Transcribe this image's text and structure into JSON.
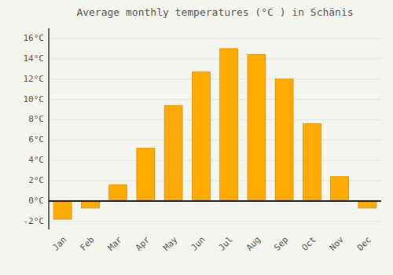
{
  "chart_data": {
    "type": "bar",
    "title": "Average monthly temperatures (°C ) in Schänis",
    "categories": [
      "Jan",
      "Feb",
      "Mar",
      "Apr",
      "May",
      "Jun",
      "Jul",
      "Aug",
      "Sep",
      "Oct",
      "Nov",
      "Dec"
    ],
    "values": [
      -1.8,
      -0.7,
      1.6,
      5.2,
      9.4,
      12.7,
      15.0,
      14.4,
      12.0,
      7.6,
      2.4,
      -0.7
    ],
    "color": "#FFAA00",
    "ylim": [
      -2.8,
      17.0
    ],
    "yticks": [
      {
        "value": -2,
        "label": "-2°C"
      },
      {
        "value": 0,
        "label": "0°C"
      },
      {
        "value": 2,
        "label": "2°C"
      },
      {
        "value": 4,
        "label": "4°C"
      },
      {
        "value": 6,
        "label": "6°C"
      },
      {
        "value": 8,
        "label": "8°C"
      },
      {
        "value": 10,
        "label": "10°C"
      },
      {
        "value": 12,
        "label": "12°C"
      },
      {
        "value": 14,
        "label": "14°C"
      },
      {
        "value": 16,
        "label": "16°C"
      }
    ],
    "grid": true
  }
}
